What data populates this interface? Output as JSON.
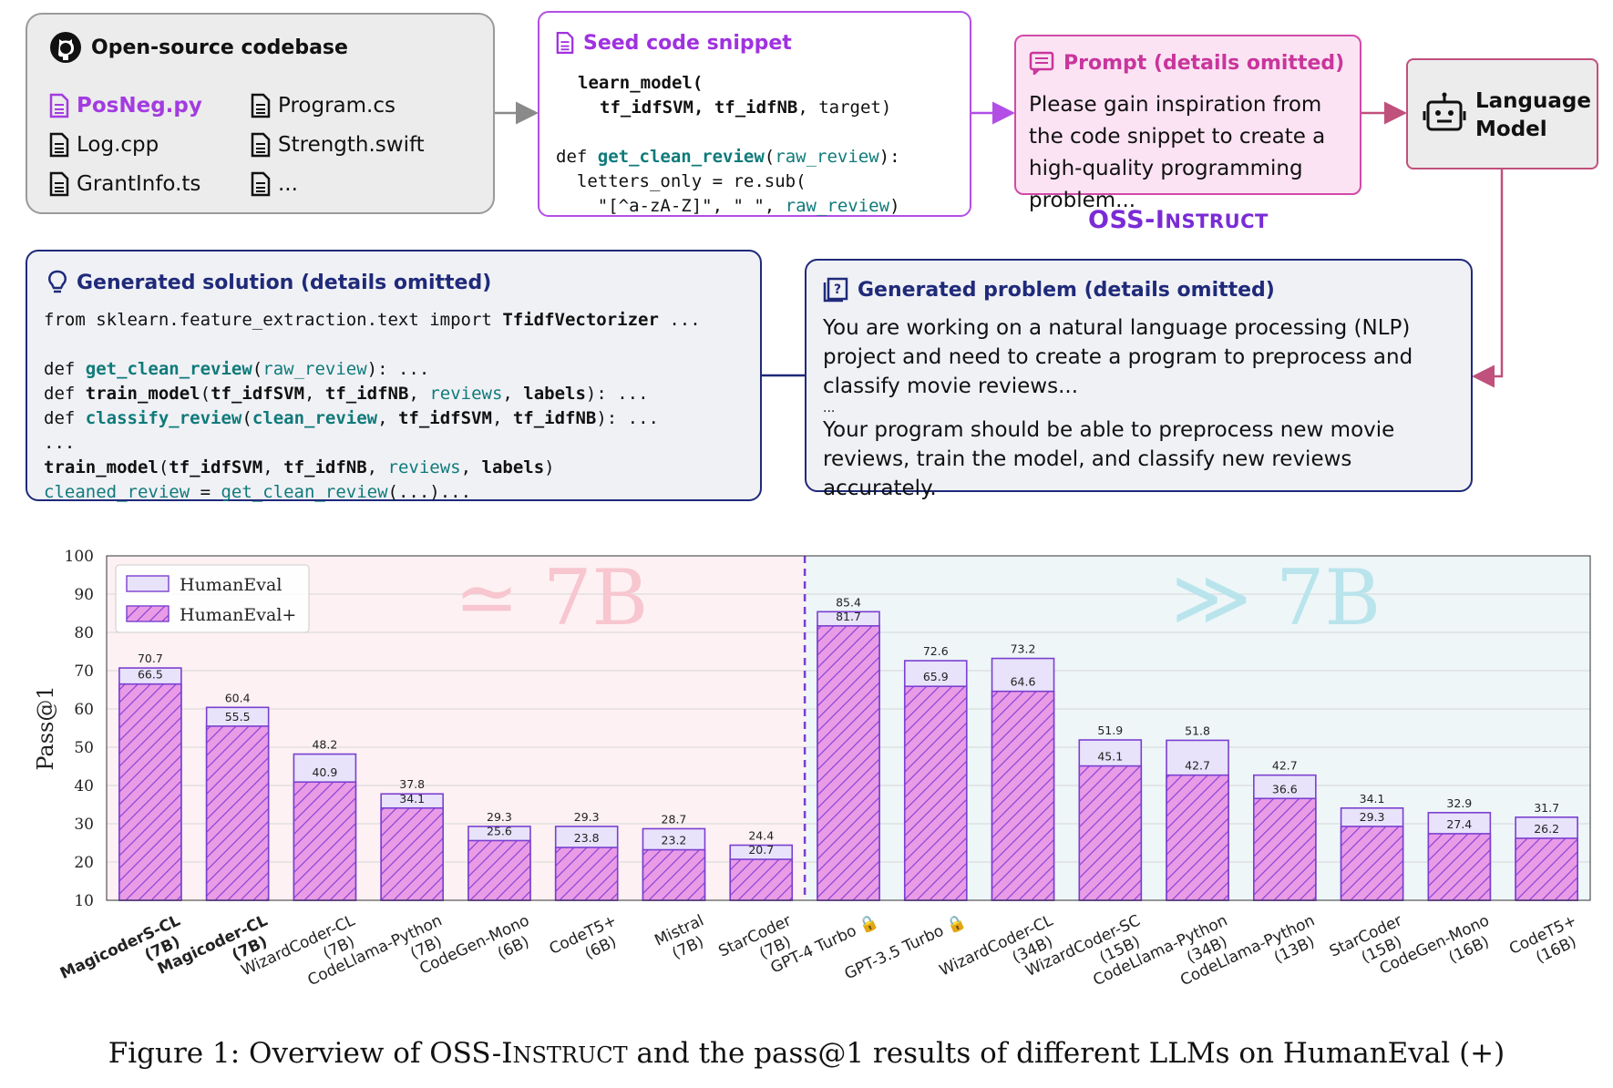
{
  "codebase": {
    "title": "Open-source codebase",
    "files_left": [
      "PosNeg.py",
      "Log.cpp",
      "GrantInfo.ts"
    ],
    "files_right": [
      "Program.cs",
      "Strength.swift",
      "..."
    ]
  },
  "seed": {
    "title": "Seed code snippet",
    "line1": "learn_model(",
    "line2a": "tf_idfSVM, tf_idfNB",
    "line2b": ", target)",
    "line3a": "def ",
    "line3b": "get_clean_review",
    "line3c": "(",
    "line3d": "raw_review",
    "line3e": "):",
    "line4": "  letters_only = re.sub(",
    "line5a": "    \"[^a-zA-Z]\", \" \", ",
    "line5b": "raw_review",
    "line5c": ")"
  },
  "prompt": {
    "title": "Prompt (details omitted)",
    "body": "Please gain inspiration from the code snippet to create a high-quality programming problem..."
  },
  "language_model": {
    "label_line1": "Language",
    "label_line2": "Model"
  },
  "oss_instruct_label": {
    "prefix": "OSS-I",
    "suffix": "NSTRUCT"
  },
  "solution": {
    "title": "Generated solution (details omitted)",
    "l1a": "from sklearn.feature_extraction.text import ",
    "l1b": "TfidfVectorizer",
    "l1c": " ...",
    "l2a": "def ",
    "l2b": "get_clean_review",
    "l2c": "(",
    "l2d": "raw_review",
    "l2e": "): ...",
    "l3a": "def ",
    "l3b": "train_model",
    "l3c": "(",
    "l3d": "tf_idfSVM",
    "l3e": ", ",
    "l3f": "tf_idfNB",
    "l3g": ", ",
    "l3h": "reviews",
    "l3i": ", ",
    "l3j": "labels",
    "l3k": "): ...",
    "l4a": "def ",
    "l4b": "classify_review",
    "l4c": "(",
    "l4d": "clean_review",
    "l4e": ", ",
    "l4f": "tf_idfSVM",
    "l4g": ", ",
    "l4h": "tf_idfNB",
    "l4i": "): ...",
    "l5": "...",
    "l6a": "train_model",
    "l6b": "(",
    "l6c": "tf_idfSVM",
    "l6d": ", ",
    "l6e": "tf_idfNB",
    "l6f": ", ",
    "l6g": "reviews",
    "l6h": ", ",
    "l6i": "labels",
    "l6j": ")",
    "l7a": "cleaned_review",
    "l7b": " = ",
    "l7c": "get_clean_review",
    "l7d": "(...)..."
  },
  "problem": {
    "title": "Generated problem (details omitted)",
    "para1": "You are working on a natural language processing (NLP) project and need to create a program to preprocess and classify movie reviews...",
    "ellipsis": "...",
    "para2": "Your program should be able to preprocess new movie reviews, train the model, and classify new reviews accurately."
  },
  "chart_data": {
    "type": "bar",
    "ylabel": "Pass@1",
    "ylim": [
      10,
      100
    ],
    "yticks": [
      10,
      20,
      30,
      40,
      50,
      60,
      70,
      80,
      90,
      100
    ],
    "legend": [
      "HumanEval",
      "HumanEval+"
    ],
    "legend_position": "top-left",
    "region_labels": [
      "≃ 7B",
      "≫ 7B"
    ],
    "categories": [
      {
        "name": "MagicoderS-CL",
        "size": "(7B)",
        "bold": true,
        "lock": false
      },
      {
        "name": "Magicoder-CL",
        "size": "(7B)",
        "bold": true,
        "lock": false
      },
      {
        "name": "WizardCoder-CL",
        "size": "(7B)",
        "bold": false,
        "lock": false
      },
      {
        "name": "CodeLlama-Python",
        "size": "(7B)",
        "bold": false,
        "lock": false
      },
      {
        "name": "CodeGen-Mono",
        "size": "(6B)",
        "bold": false,
        "lock": false
      },
      {
        "name": "CodeT5+",
        "size": "(6B)",
        "bold": false,
        "lock": false
      },
      {
        "name": "Mistral",
        "size": "(7B)",
        "bold": false,
        "lock": false
      },
      {
        "name": "StarCoder",
        "size": "(7B)",
        "bold": false,
        "lock": false
      },
      {
        "name": "GPT-4 Turbo",
        "size": "",
        "bold": false,
        "lock": true
      },
      {
        "name": "GPT-3.5 Turbo",
        "size": "",
        "bold": false,
        "lock": true
      },
      {
        "name": "WizardCoder-CL",
        "size": "(34B)",
        "bold": false,
        "lock": false
      },
      {
        "name": "WizardCoder-SC",
        "size": "(15B)",
        "bold": false,
        "lock": false
      },
      {
        "name": "CodeLlama-Python",
        "size": "(34B)",
        "bold": false,
        "lock": false
      },
      {
        "name": "CodeLlama-Python",
        "size": "(13B)",
        "bold": false,
        "lock": false
      },
      {
        "name": "StarCoder",
        "size": "(15B)",
        "bold": false,
        "lock": false
      },
      {
        "name": "CodeGen-Mono",
        "size": "(16B)",
        "bold": false,
        "lock": false
      },
      {
        "name": "CodeT5+",
        "size": "(16B)",
        "bold": false,
        "lock": false
      }
    ],
    "series": [
      {
        "name": "HumanEval",
        "values": [
          70.7,
          60.4,
          48.2,
          37.8,
          29.3,
          29.3,
          28.7,
          24.4,
          85.4,
          72.6,
          73.2,
          51.9,
          51.8,
          42.7,
          34.1,
          32.9,
          31.7
        ]
      },
      {
        "name": "HumanEval+",
        "values": [
          66.5,
          55.5,
          40.9,
          34.1,
          25.6,
          23.8,
          23.2,
          20.7,
          81.7,
          65.9,
          64.6,
          45.1,
          42.7,
          36.6,
          29.3,
          27.4,
          26.2
        ]
      }
    ],
    "colors": {
      "humaneval_fill": "#e8e3fa",
      "humaneval_plus_fill": "#e99be6",
      "bar_edge": "#7a3fd0",
      "left_bg": "#fdf1f3",
      "right_bg": "#eef6f8",
      "left_region_text": "#f7c6cf",
      "right_region_text": "#b9e4ec"
    }
  },
  "caption": {
    "prefix": "Figure 1: Overview of OSS-I",
    "sc": "NSTRUCT",
    "suffix": " and the pass@1 results of different LLMs on HumanEval (+)"
  }
}
